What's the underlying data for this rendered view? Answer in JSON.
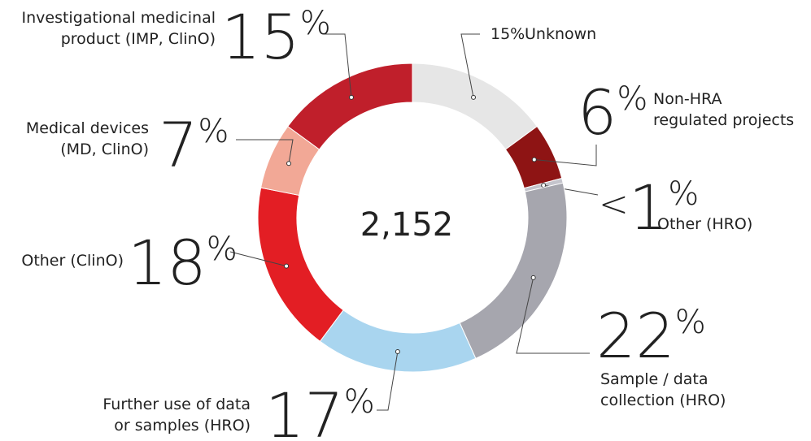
{
  "chart_data": {
    "type": "donut",
    "center_label": "2,152",
    "categories": [
      [
        "Unknown"
      ],
      [
        "Non-HRA",
        "regulated projects"
      ],
      [
        "Other (HRO)"
      ],
      [
        "Sample / data",
        "collection (HRO)"
      ],
      [
        "Further use of data",
        "or samples (HRO)"
      ],
      [
        "Other (ClinO)"
      ],
      [
        "Medical devices",
        "(MD, ClinO)"
      ],
      [
        "Investigational medicinal",
        "product (IMP, ClinO)"
      ]
    ],
    "values": [
      15,
      6,
      0.5,
      22,
      17,
      18,
      7,
      15
    ],
    "value_labels": [
      "15%",
      "6%",
      "<1%",
      "22%",
      "17%",
      "18%",
      "7%",
      "15%"
    ],
    "colors": [
      "#e6e6e6",
      "#8e1414",
      "#c4c4cc",
      "#a6a6ae",
      "#a9d5ef",
      "#e31e24",
      "#f2a896",
      "#c01f2b"
    ]
  }
}
